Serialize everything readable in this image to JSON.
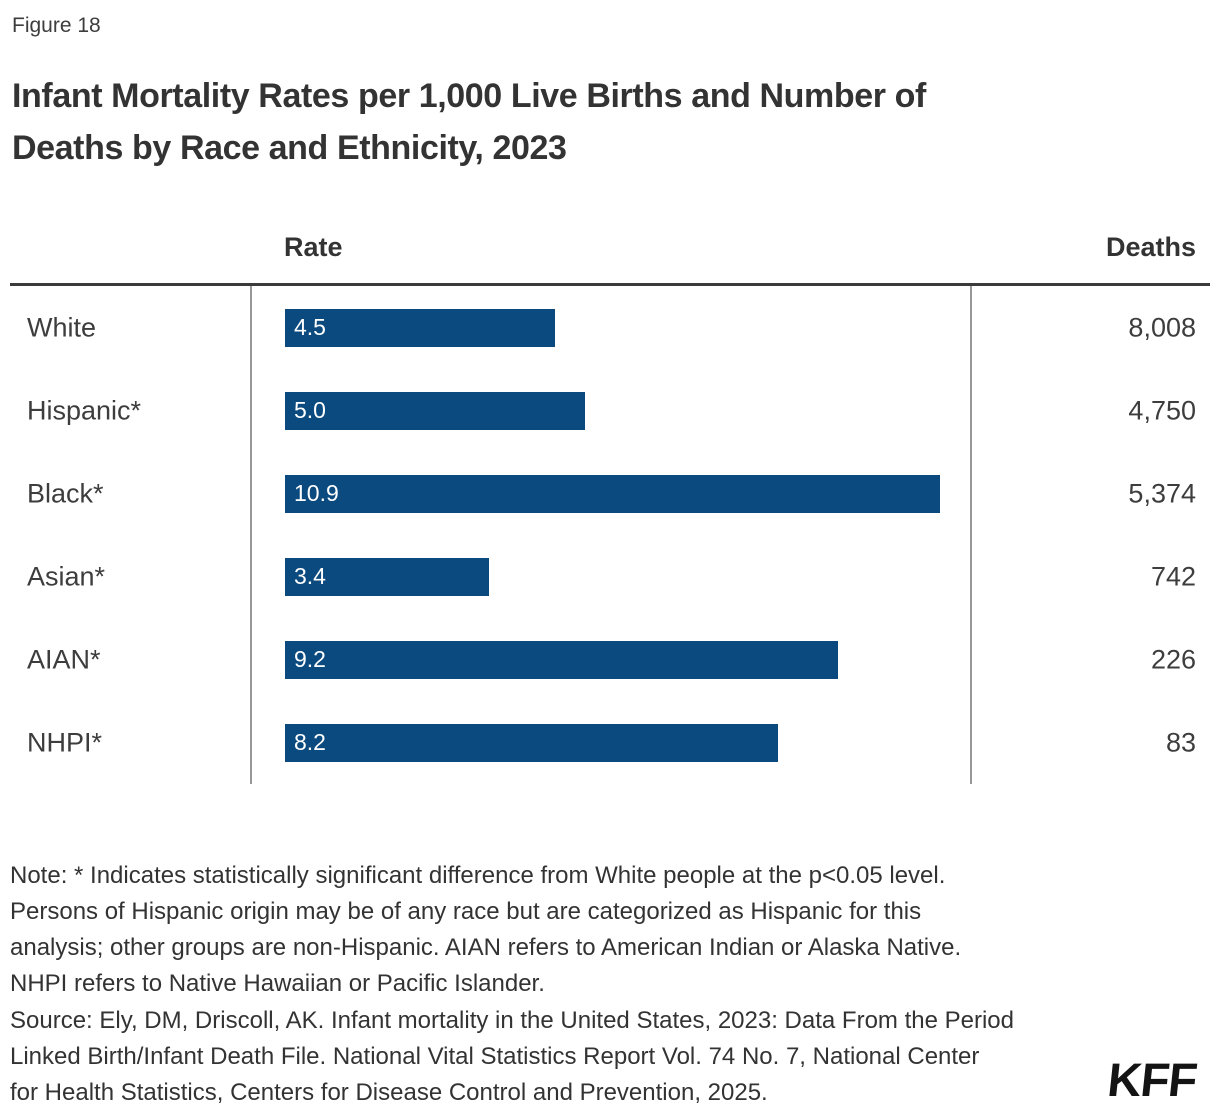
{
  "figure_label": "Figure 18",
  "title_lines": [
    "Infant Mortality Rates per 1,000 Live Births and Number of",
    "Deaths by Race and Ethnicity, 2023"
  ],
  "columns": {
    "rate_header": "Rate",
    "deaths_header": "Deaths"
  },
  "chart_data": {
    "type": "bar",
    "orientation": "horizontal",
    "title": "Infant Mortality Rates per 1,000 Live Births and Number of Deaths by Race and Ethnicity, 2023",
    "categories": [
      "White",
      "Hispanic*",
      "Black*",
      "Asian*",
      "AIAN*",
      "NHPI*"
    ],
    "series": [
      {
        "name": "Rate",
        "values": [
          4.5,
          5.0,
          10.9,
          3.4,
          9.2,
          8.2
        ]
      },
      {
        "name": "Deaths",
        "values": [
          8008,
          4750,
          5374,
          742,
          226,
          83
        ]
      }
    ],
    "rate_labels": [
      "4.5",
      "5.0",
      "10.9",
      "3.4",
      "9.2",
      "8.2"
    ],
    "deaths_labels": [
      "8,008",
      "4,750",
      "5,374",
      "742",
      "226",
      "83"
    ],
    "xlim": [
      0,
      11.4
    ],
    "grid": false,
    "legend_position": "none",
    "bar_color": "#0b4a7e"
  },
  "note_lines": [
    "Note: * Indicates statistically significant difference from White people at the p<0.05 level.",
    "Persons of Hispanic origin may be of any race but are categorized as Hispanic for this",
    "analysis; other groups are non-Hispanic. AIAN refers to American Indian or Alaska Native.",
    "NHPI refers to Native Hawaiian or Pacific Islander."
  ],
  "source_lines": [
    "Source: Ely, DM, Driscoll, AK. Infant mortality in the United States, 2023: Data From the Period",
    "Linked Birth/Infant Death File. National Vital Statistics Report Vol. 74 No. 7, National Center",
    "for Health Statistics, Centers for Disease Control and Prevention, 2025."
  ],
  "logo_text": "KFF"
}
